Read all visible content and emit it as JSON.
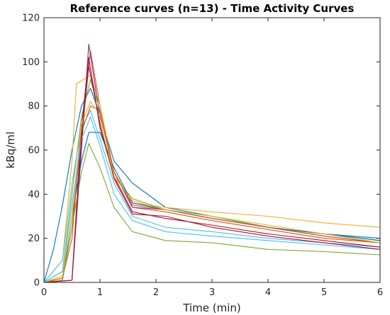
{
  "chart_data": {
    "type": "line",
    "title": "Reference curves (n=13) - Time Activity Curves",
    "xlabel": "Time (min)",
    "ylabel": "kBq/ml",
    "xlim": [
      0,
      6
    ],
    "ylim": [
      0,
      120
    ],
    "xticks": [
      "0",
      "1",
      "2",
      "3",
      "4",
      "5",
      "6"
    ],
    "yticks": [
      "0",
      "20",
      "40",
      "60",
      "80",
      "100",
      "120"
    ],
    "grid": false,
    "legend": "none",
    "series": [
      {
        "color": "#0072BD",
        "x": [
          0,
          0.17,
          0.33,
          0.5,
          0.67,
          0.83,
          1.0,
          1.25,
          1.58,
          2.17,
          3,
          4,
          5,
          6
        ],
        "y": [
          0,
          15,
          35,
          60,
          80,
          88,
          76,
          55,
          45,
          34,
          30,
          25,
          22,
          20
        ]
      },
      {
        "color": "#D95319",
        "x": [
          0,
          0.33,
          0.5,
          0.67,
          0.83,
          1.0,
          1.25,
          1.58,
          2.17,
          3,
          4,
          5,
          6
        ],
        "y": [
          0,
          2,
          20,
          70,
          105,
          80,
          50,
          34,
          32,
          28,
          24,
          20,
          18
        ]
      },
      {
        "color": "#EDB120",
        "x": [
          0,
          0.33,
          0.5,
          0.58,
          0.83,
          1.0,
          1.25,
          1.58,
          2.17,
          3,
          4,
          5,
          6
        ],
        "y": [
          0,
          10,
          55,
          90,
          94,
          80,
          50,
          36,
          34,
          32,
          30,
          27,
          25
        ]
      },
      {
        "color": "#7E2F8E",
        "x": [
          0,
          0.5,
          0.67,
          0.8,
          1.0,
          1.25,
          1.58,
          2.17,
          3,
          4,
          5,
          6
        ],
        "y": [
          0,
          1,
          60,
          108,
          75,
          50,
          34,
          33,
          29,
          25,
          21,
          18
        ]
      },
      {
        "color": "#77AC30",
        "x": [
          0,
          0.33,
          0.5,
          0.67,
          0.83,
          1.0,
          1.25,
          1.58,
          2.17,
          3,
          4,
          5,
          6
        ],
        "y": [
          0,
          5,
          40,
          75,
          92,
          78,
          48,
          38,
          33,
          30,
          25,
          22,
          19
        ]
      },
      {
        "color": "#4DBEEE",
        "x": [
          0,
          0.33,
          0.5,
          0.67,
          0.83,
          1.0,
          1.25,
          1.58,
          2.17,
          3,
          4,
          5,
          6
        ],
        "y": [
          0,
          10,
          45,
          70,
          78,
          65,
          45,
          30,
          25,
          23,
          20,
          18,
          16
        ]
      },
      {
        "color": "#A2142F",
        "x": [
          0,
          0.5,
          0.67,
          0.8,
          1.0,
          1.25,
          1.58,
          2.17,
          3,
          4,
          5,
          6
        ],
        "y": [
          0,
          1,
          70,
          102,
          70,
          48,
          32,
          29,
          26,
          22,
          19,
          16
        ]
      },
      {
        "color": "#0072BD",
        "x": [
          0,
          0.33,
          0.5,
          0.67,
          0.8,
          1.0,
          1.25,
          1.58,
          2.17,
          3,
          4,
          5,
          6
        ],
        "y": [
          0,
          1,
          30,
          55,
          68,
          68,
          52,
          36,
          33,
          29,
          25,
          22,
          19
        ]
      },
      {
        "color": "#D95319",
        "x": [
          0,
          0.33,
          0.5,
          0.67,
          0.83,
          1.0,
          1.25,
          1.58,
          2.17,
          3,
          4,
          5,
          6
        ],
        "y": [
          0,
          2,
          25,
          68,
          80,
          78,
          50,
          35,
          33,
          29,
          25,
          21,
          18
        ]
      },
      {
        "color": "#EDB120",
        "x": [
          0,
          0.33,
          0.5,
          0.67,
          0.83,
          1.0,
          1.25,
          1.58,
          2.17,
          3,
          4,
          5,
          6
        ],
        "y": [
          0,
          3,
          30,
          72,
          82,
          76,
          48,
          37,
          33,
          30,
          26,
          22,
          18
        ]
      },
      {
        "color": "#77AC30",
        "x": [
          0,
          0.33,
          0.5,
          0.67,
          0.8,
          1.0,
          1.25,
          1.58,
          2.17,
          3,
          4,
          5,
          6
        ],
        "y": [
          0,
          1,
          25,
          50,
          63,
          52,
          34,
          23,
          19,
          18,
          15,
          14,
          12.5
        ]
      },
      {
        "color": "#4DBEEE",
        "x": [
          0,
          0.33,
          0.5,
          0.67,
          0.83,
          1.0,
          1.25,
          1.58,
          2.17,
          3,
          4,
          5,
          6
        ],
        "y": [
          0,
          5,
          35,
          65,
          75,
          62,
          40,
          28,
          23,
          21,
          19,
          17,
          15
        ]
      },
      {
        "color": "#A2142F",
        "x": [
          0,
          0.5,
          0.67,
          0.8,
          1.0,
          1.25,
          1.58,
          2.17,
          3,
          4,
          5,
          6
        ],
        "y": [
          0,
          1,
          65,
          98,
          72,
          47,
          31,
          30,
          25,
          21,
          18,
          15
        ]
      }
    ]
  }
}
